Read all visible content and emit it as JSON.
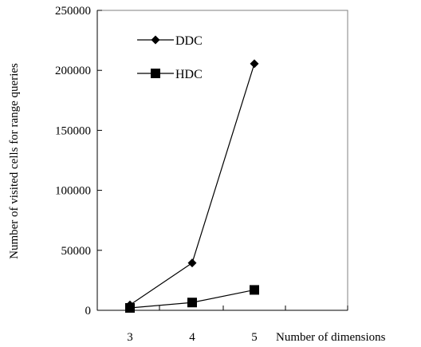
{
  "chart_data": {
    "type": "line",
    "title": "",
    "xlabel": "Number of dimensions",
    "ylabel": "Number of visited cells for range queries",
    "x": [
      3,
      4,
      5
    ],
    "x_ticks": [
      "3",
      "4",
      "5"
    ],
    "ylim": [
      0,
      250000
    ],
    "y_ticks": [
      "0",
      "50000",
      "100000",
      "150000",
      "200000",
      "250000"
    ],
    "grid": false,
    "legend_position": "top-left",
    "series": [
      {
        "name": "DDC",
        "marker": "diamond",
        "values": [
          4500,
          39500,
          205500
        ]
      },
      {
        "name": "HDC",
        "marker": "square",
        "values": [
          2000,
          6500,
          17000
        ]
      }
    ]
  }
}
